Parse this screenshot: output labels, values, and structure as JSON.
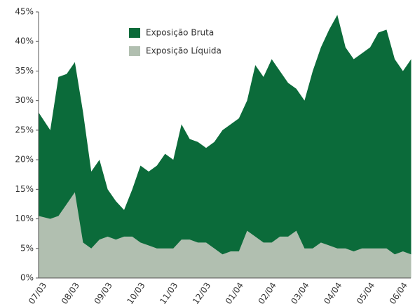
{
  "chart_data": {
    "type": "area",
    "categories": [
      "07/03",
      null,
      null,
      null,
      "08/03",
      null,
      null,
      null,
      "09/03",
      null,
      null,
      null,
      "10/03",
      null,
      null,
      null,
      "11/03",
      null,
      null,
      null,
      "12/03",
      null,
      null,
      null,
      "01/04",
      null,
      null,
      null,
      "02/04",
      null,
      null,
      null,
      "03/04",
      null,
      null,
      null,
      "04/04",
      null,
      null,
      null,
      "05/04",
      null,
      null,
      null,
      "06/04",
      null
    ],
    "series": [
      {
        "name": "Exposição Bruta",
        "color": "#0b6b3a",
        "values": [
          28,
          25,
          34,
          34.5,
          36.5,
          28,
          18,
          20,
          15,
          13,
          11.5,
          15,
          19,
          18,
          19,
          21,
          20,
          26,
          23.5,
          23,
          22,
          23,
          25,
          26,
          27,
          30,
          36,
          34,
          37,
          35,
          33,
          32,
          30,
          35,
          39,
          42,
          44.5,
          39,
          37,
          38,
          39,
          41.5,
          42,
          37,
          35,
          37
        ]
      },
      {
        "name": "Exposição Líquida",
        "color": "#b1bfb0",
        "values": [
          10.5,
          10,
          10.5,
          12.5,
          14.5,
          6,
          5,
          6.5,
          7,
          6.5,
          7,
          7,
          6,
          5.5,
          5,
          5,
          5,
          6.5,
          6.5,
          6,
          6,
          5,
          4,
          4.5,
          4.5,
          8,
          7,
          6,
          6,
          7,
          7,
          8,
          5,
          5,
          6,
          5.5,
          5,
          5,
          4.5,
          5,
          5,
          5,
          5,
          4,
          4.5,
          4
        ]
      }
    ],
    "ylim": [
      0,
      45
    ],
    "yticks": [
      {
        "value": 0,
        "label": "0%"
      },
      {
        "value": 5,
        "label": "5%"
      },
      {
        "value": 10,
        "label": "10%"
      },
      {
        "value": 15,
        "label": "15%"
      },
      {
        "value": 20,
        "label": "20%"
      },
      {
        "value": 25,
        "label": "25%"
      },
      {
        "value": 30,
        "label": "30%"
      },
      {
        "value": 35,
        "label": "35%"
      },
      {
        "value": 40,
        "label": "40%"
      },
      {
        "value": 45,
        "label": "45%"
      }
    ],
    "legend": "upper center",
    "grid": false
  }
}
